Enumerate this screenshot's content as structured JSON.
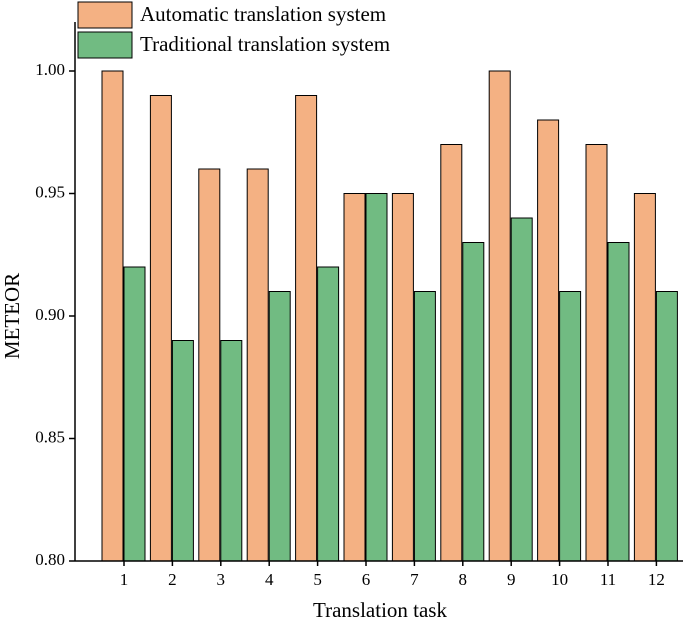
{
  "chart_data": {
    "type": "bar",
    "x_label": "Translation task",
    "y_label": "METEOR",
    "categories": [
      "1",
      "2",
      "3",
      "4",
      "5",
      "6",
      "7",
      "8",
      "9",
      "10",
      "11",
      "12"
    ],
    "series": [
      {
        "name": "Automatic translation system",
        "color": "#f4b183",
        "values": [
          1.0,
          0.99,
          0.96,
          0.96,
          0.99,
          0.95,
          0.95,
          0.97,
          1.0,
          0.98,
          0.97,
          0.95
        ]
      },
      {
        "name": "Traditional translation system",
        "color": "#71bb82",
        "values": [
          0.92,
          0.89,
          0.89,
          0.91,
          0.92,
          0.95,
          0.91,
          0.93,
          0.94,
          0.91,
          0.93,
          0.91
        ]
      }
    ],
    "ylim": [
      0.8,
      1.02
    ],
    "yticks": [
      {
        "value": 0.8,
        "label": "0.80"
      },
      {
        "value": 0.85,
        "label": "0.85"
      },
      {
        "value": 0.9,
        "label": "0.90"
      },
      {
        "value": 0.95,
        "label": "0.95"
      },
      {
        "value": 1.0,
        "label": "1.00"
      }
    ],
    "legend": "top-left"
  }
}
